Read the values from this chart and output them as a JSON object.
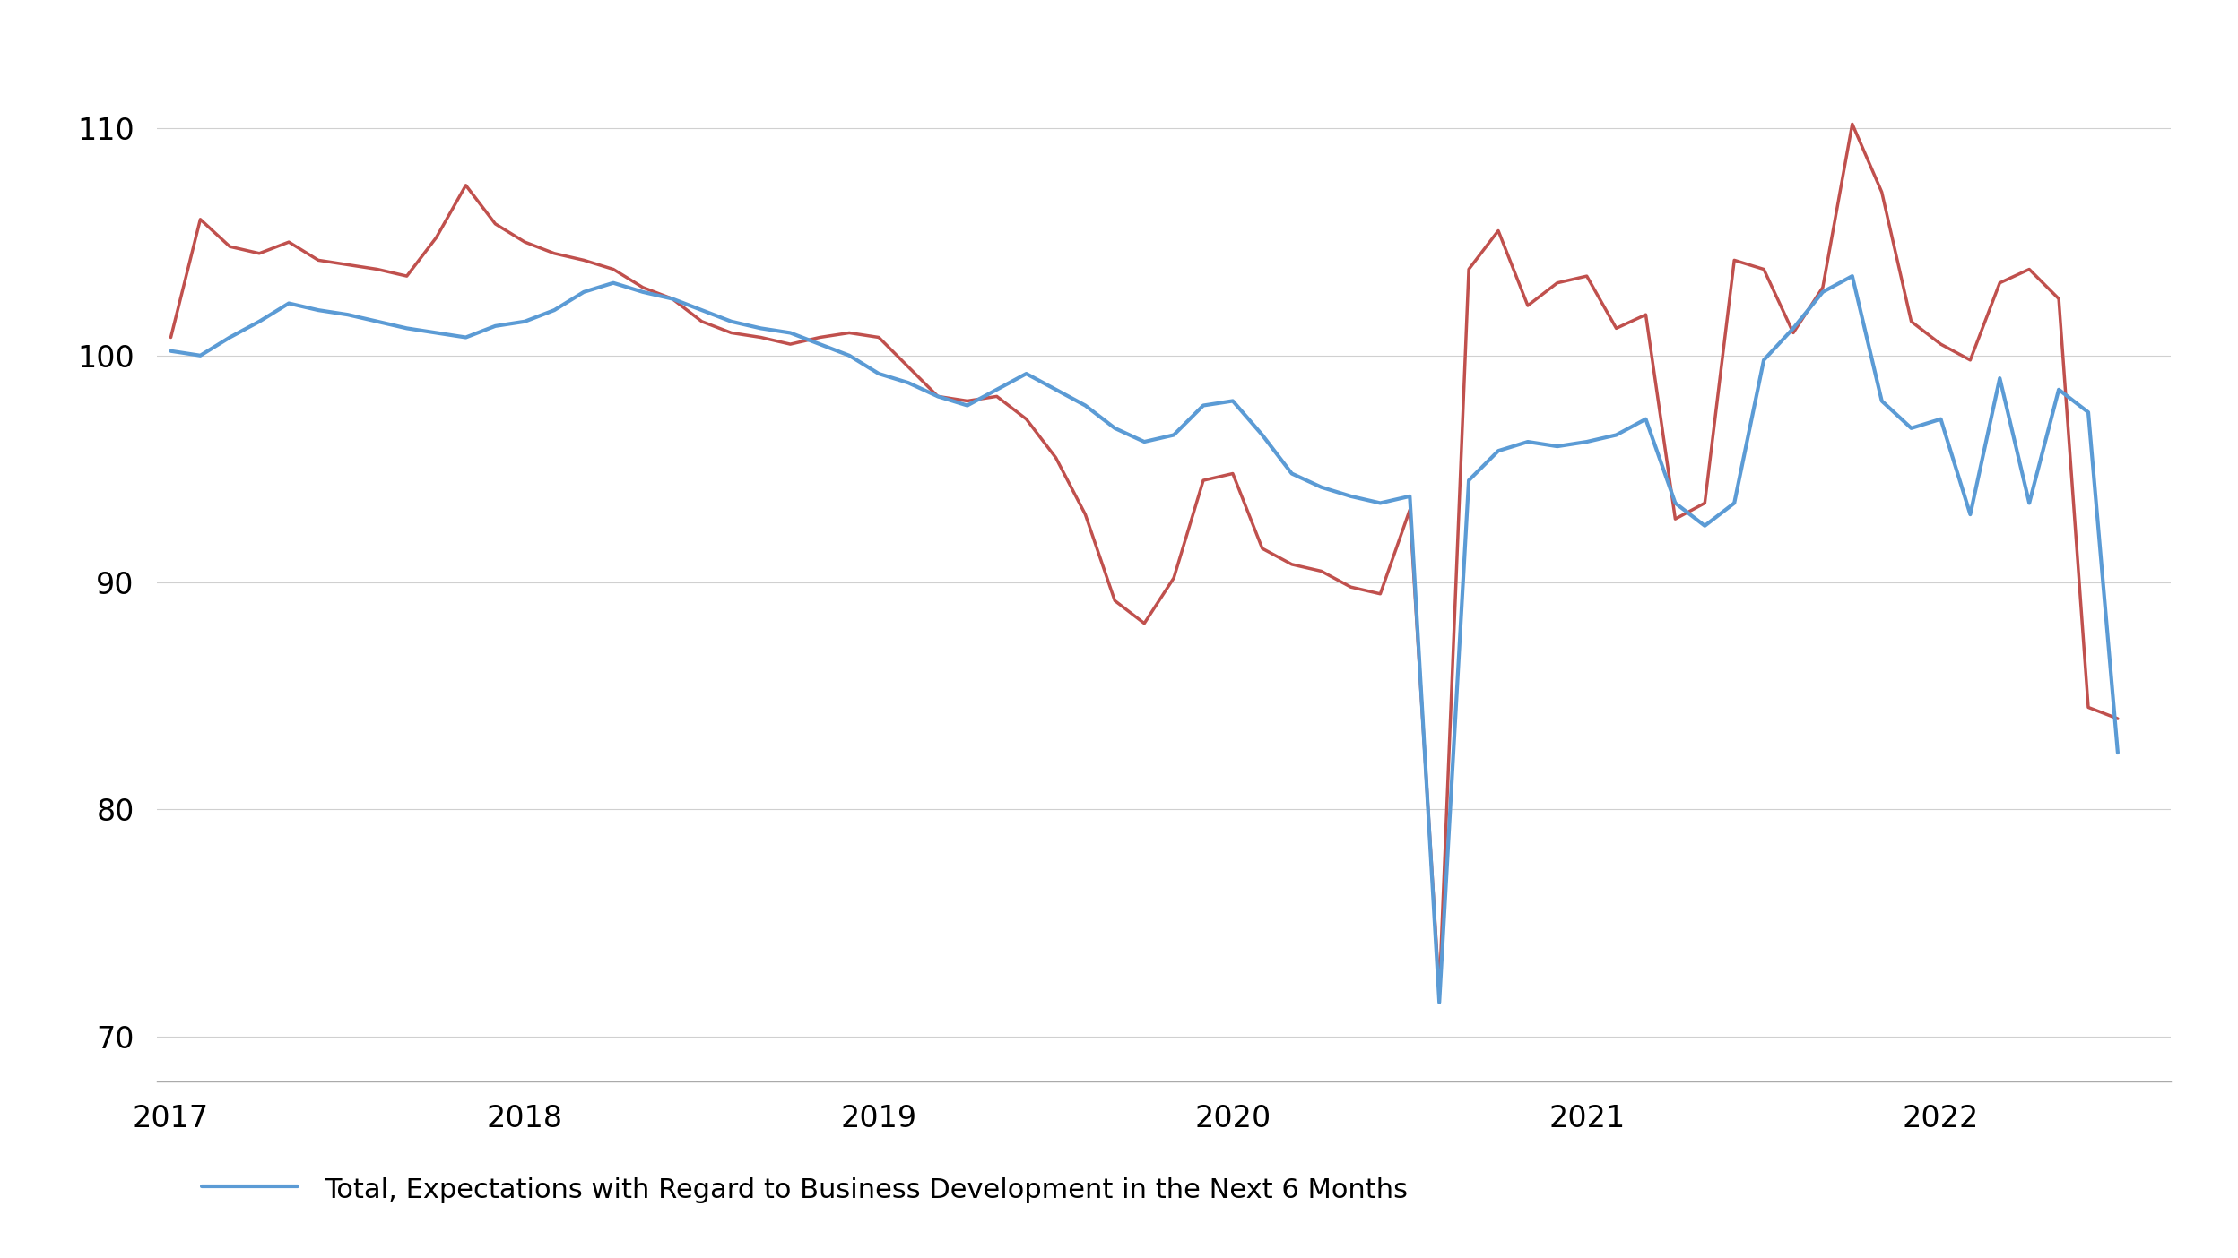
{
  "blue_y": [
    100.2,
    100.0,
    100.8,
    101.5,
    102.3,
    102.0,
    101.8,
    101.5,
    101.2,
    101.0,
    100.8,
    101.3,
    101.5,
    102.0,
    102.8,
    103.2,
    102.8,
    102.5,
    102.0,
    101.5,
    101.2,
    101.0,
    100.5,
    100.0,
    99.2,
    98.8,
    98.2,
    97.8,
    98.5,
    99.2,
    98.5,
    97.8,
    96.8,
    96.2,
    96.5,
    97.8,
    98.0,
    96.5,
    94.8,
    94.2,
    93.8,
    93.5,
    93.8,
    71.5,
    94.5,
    95.8,
    96.2,
    96.0,
    96.2,
    96.5,
    97.2,
    93.5,
    92.5,
    93.5,
    99.8,
    101.2,
    102.8,
    103.5,
    98.0,
    96.8,
    97.2,
    93.0,
    99.0,
    93.5,
    98.5,
    97.5,
    82.5
  ],
  "red_y": [
    100.8,
    106.0,
    104.8,
    104.5,
    105.0,
    104.2,
    104.0,
    103.8,
    103.5,
    105.2,
    107.5,
    105.8,
    105.0,
    104.5,
    104.2,
    103.8,
    103.0,
    102.5,
    101.5,
    101.0,
    100.8,
    100.5,
    100.8,
    101.0,
    100.8,
    99.5,
    98.2,
    98.0,
    98.2,
    97.2,
    95.5,
    93.0,
    89.2,
    88.2,
    90.2,
    94.5,
    94.8,
    91.5,
    90.8,
    90.5,
    89.8,
    89.5,
    93.2,
    72.0,
    103.8,
    105.5,
    102.2,
    103.2,
    103.5,
    101.2,
    101.8,
    92.8,
    93.5,
    104.2,
    103.8,
    101.0,
    103.0,
    110.2,
    107.2,
    101.5,
    100.5,
    99.8,
    103.2,
    103.8,
    102.5,
    84.5,
    84.0
  ],
  "n_months": 67,
  "x_start": 2017.0,
  "x_step": 0.08333333333,
  "ylim": [
    68,
    114
  ],
  "yticks": [
    70,
    80,
    90,
    100,
    110
  ],
  "xtick_years": [
    2017,
    2018,
    2019,
    2020,
    2021,
    2022
  ],
  "blue_color": "#5b9bd5",
  "red_color": "#c0504d",
  "blue_linewidth": 3.0,
  "red_linewidth": 2.5,
  "legend_label": "Total, Expectations with Regard to Business Development in the Next 6 Months",
  "background_color": "#ffffff",
  "grid_color": "#d0d0d0",
  "axis_color": "#aaaaaa",
  "tick_font_size": 24,
  "legend_font_size": 22
}
